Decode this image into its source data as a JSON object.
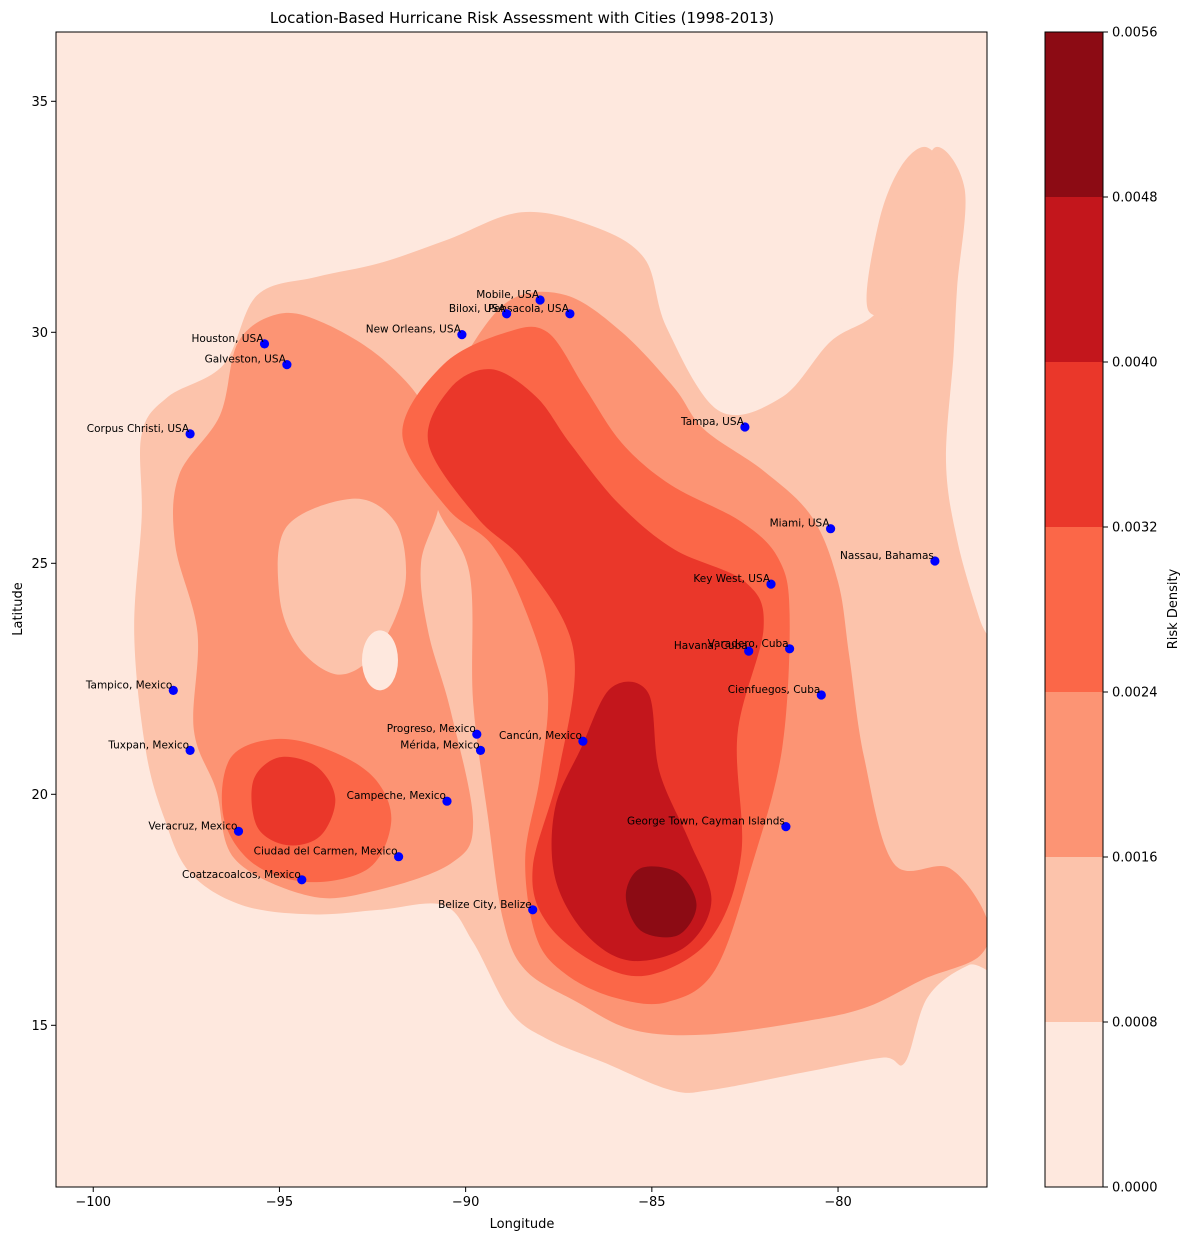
{
  "chart_data": {
    "type": "heatmap",
    "subtype": "filled-contour with scatter overlay",
    "title": "Location-Based Hurricane Risk Assessment with Cities (1998-2013)",
    "xlabel": "Longitude",
    "ylabel": "Latitude",
    "xlim": [
      -101,
      -76
    ],
    "ylim": [
      11.5,
      36.5
    ],
    "xticks": [
      -100,
      -95,
      -90,
      -85,
      -80
    ],
    "yticks": [
      15,
      20,
      25,
      30,
      35
    ],
    "grid": false,
    "colorbar": {
      "label": "Risk Density",
      "levels": [
        0.0,
        0.0008,
        0.0016,
        0.0024,
        0.0032,
        0.004,
        0.0048,
        0.0056
      ],
      "tick_labels": [
        "0.0000",
        "0.0008",
        "0.0016",
        "0.0024",
        "0.0032",
        "0.0040",
        "0.0048",
        "0.0056"
      ],
      "colors": [
        "#fee8de",
        "#fcc3ab",
        "#fc9474",
        "#fb6748",
        "#ea372a",
        "#c3161c",
        "#8c0b14"
      ]
    },
    "cities": [
      {
        "name": "Mobile, USA",
        "lon": -88.0,
        "lat": 30.7
      },
      {
        "name": "Pensacola, USA",
        "lon": -87.2,
        "lat": 30.4
      },
      {
        "name": "Biloxi, USA",
        "lon": -88.9,
        "lat": 30.4
      },
      {
        "name": "New Orleans, USA",
        "lon": -90.1,
        "lat": 29.95
      },
      {
        "name": "Houston, USA",
        "lon": -95.4,
        "lat": 29.75
      },
      {
        "name": "Galveston, USA",
        "lon": -94.8,
        "lat": 29.3
      },
      {
        "name": "Corpus Christi, USA",
        "lon": -97.4,
        "lat": 27.8
      },
      {
        "name": "Tampa, USA",
        "lon": -82.5,
        "lat": 27.95
      },
      {
        "name": "Miami, USA",
        "lon": -80.2,
        "lat": 25.75
      },
      {
        "name": "Nassau, Bahamas",
        "lon": -77.4,
        "lat": 25.05
      },
      {
        "name": "Key West, USA",
        "lon": -81.8,
        "lat": 24.55
      },
      {
        "name": "Havana, Cuba",
        "lon": -82.4,
        "lat": 23.1
      },
      {
        "name": "Varadero, Cuba",
        "lon": -81.3,
        "lat": 23.15
      },
      {
        "name": "Cienfuegos, Cuba",
        "lon": -80.45,
        "lat": 22.15
      },
      {
        "name": "Tampico, Mexico",
        "lon": -97.85,
        "lat": 22.25
      },
      {
        "name": "Progreso, Mexico",
        "lon": -89.7,
        "lat": 21.3
      },
      {
        "name": "Mérida, Mexico",
        "lon": -89.6,
        "lat": 20.95
      },
      {
        "name": "Cancún, Mexico",
        "lon": -86.85,
        "lat": 21.15
      },
      {
        "name": "Tuxpan, Mexico",
        "lon": -97.4,
        "lat": 20.95
      },
      {
        "name": "Campeche, Mexico",
        "lon": -90.5,
        "lat": 19.85
      },
      {
        "name": "Veracruz, Mexico",
        "lon": -96.1,
        "lat": 19.2
      },
      {
        "name": "George Town, Cayman Islands",
        "lon": -81.4,
        "lat": 19.3
      },
      {
        "name": "Ciudad del Carmen, Mexico",
        "lon": -91.8,
        "lat": 18.65
      },
      {
        "name": "Coatzacoalcos, Mexico",
        "lon": -94.4,
        "lat": 18.15
      },
      {
        "name": "Belize City, Belize",
        "lon": -88.2,
        "lat": 17.5
      }
    ],
    "risk_hotspots": [
      {
        "lon": -84.6,
        "lat": 17.9,
        "peak": 0.0052
      },
      {
        "lon": -85.4,
        "lat": 20.8,
        "peak": 0.0043
      },
      {
        "lon": -88.8,
        "lat": 28.2,
        "peak": 0.0038
      },
      {
        "lon": -94.7,
        "lat": 19.9,
        "peak": 0.0035
      },
      {
        "lon": -81.8,
        "lat": 23.2,
        "peak": 0.0029
      }
    ]
  }
}
